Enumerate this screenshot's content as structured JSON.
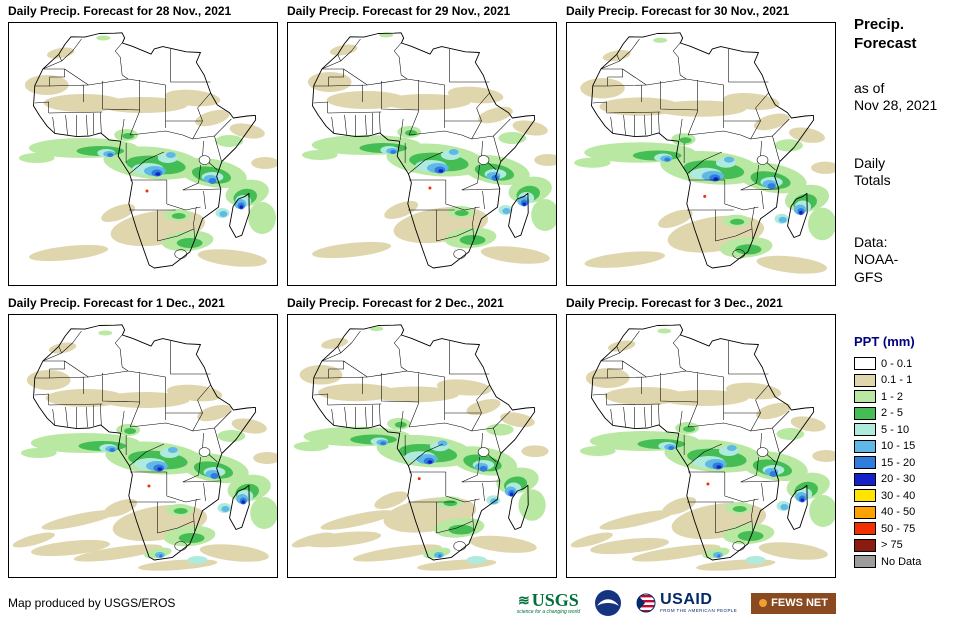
{
  "panels": [
    {
      "title": "Daily Precip. Forecast for 28 Nov., 2021"
    },
    {
      "title": "Daily Precip. Forecast for 29 Nov., 2021"
    },
    {
      "title": "Daily Precip. Forecast for 30 Nov., 2021"
    },
    {
      "title": "Daily Precip. Forecast for 1 Dec., 2021"
    },
    {
      "title": "Daily Precip. Forecast for 2 Dec., 2021"
    },
    {
      "title": "Daily Precip. Forecast for 3 Dec., 2021"
    }
  ],
  "sidebar": {
    "title": "Precip.\nForecast",
    "as_of": "as of\nNov 28, 2021",
    "totals": "Daily\nTotals",
    "source": "Data:\nNOAA-\nGFS",
    "legend_title": "PPT (mm)",
    "legend": [
      {
        "label": "0 - 0.1",
        "color": "#FFFFFF"
      },
      {
        "label": "0.1 - 1",
        "color": "#E0D6AE"
      },
      {
        "label": "1 - 2",
        "color": "#B8E8A2"
      },
      {
        "label": "2 - 5",
        "color": "#44BE54"
      },
      {
        "label": "5 - 10",
        "color": "#AEEBDD"
      },
      {
        "label": "10 - 15",
        "color": "#5FB8E6"
      },
      {
        "label": "15 - 20",
        "color": "#2E7CDB"
      },
      {
        "label": "20 - 30",
        "color": "#1420C8"
      },
      {
        "label": "30 - 40",
        "color": "#FFE400"
      },
      {
        "label": "40 - 50",
        "color": "#FFA100"
      },
      {
        "label": "50 - 75",
        "color": "#F03000"
      },
      {
        "label": "> 75",
        "color": "#8C1A10"
      },
      {
        "label": "No Data",
        "color": "#9C9C9C"
      }
    ]
  },
  "footer": {
    "credit": "Map produced by USGS/EROS"
  },
  "logos": {
    "usgs": {
      "name": "USGS",
      "tagline": "science for a changing world"
    },
    "noaa": {
      "name": "NOAA"
    },
    "usaid": {
      "name": "USAID",
      "tagline": "FROM THE AMERICAN PEOPLE"
    },
    "fews": {
      "name": "FEWS NET"
    }
  }
}
